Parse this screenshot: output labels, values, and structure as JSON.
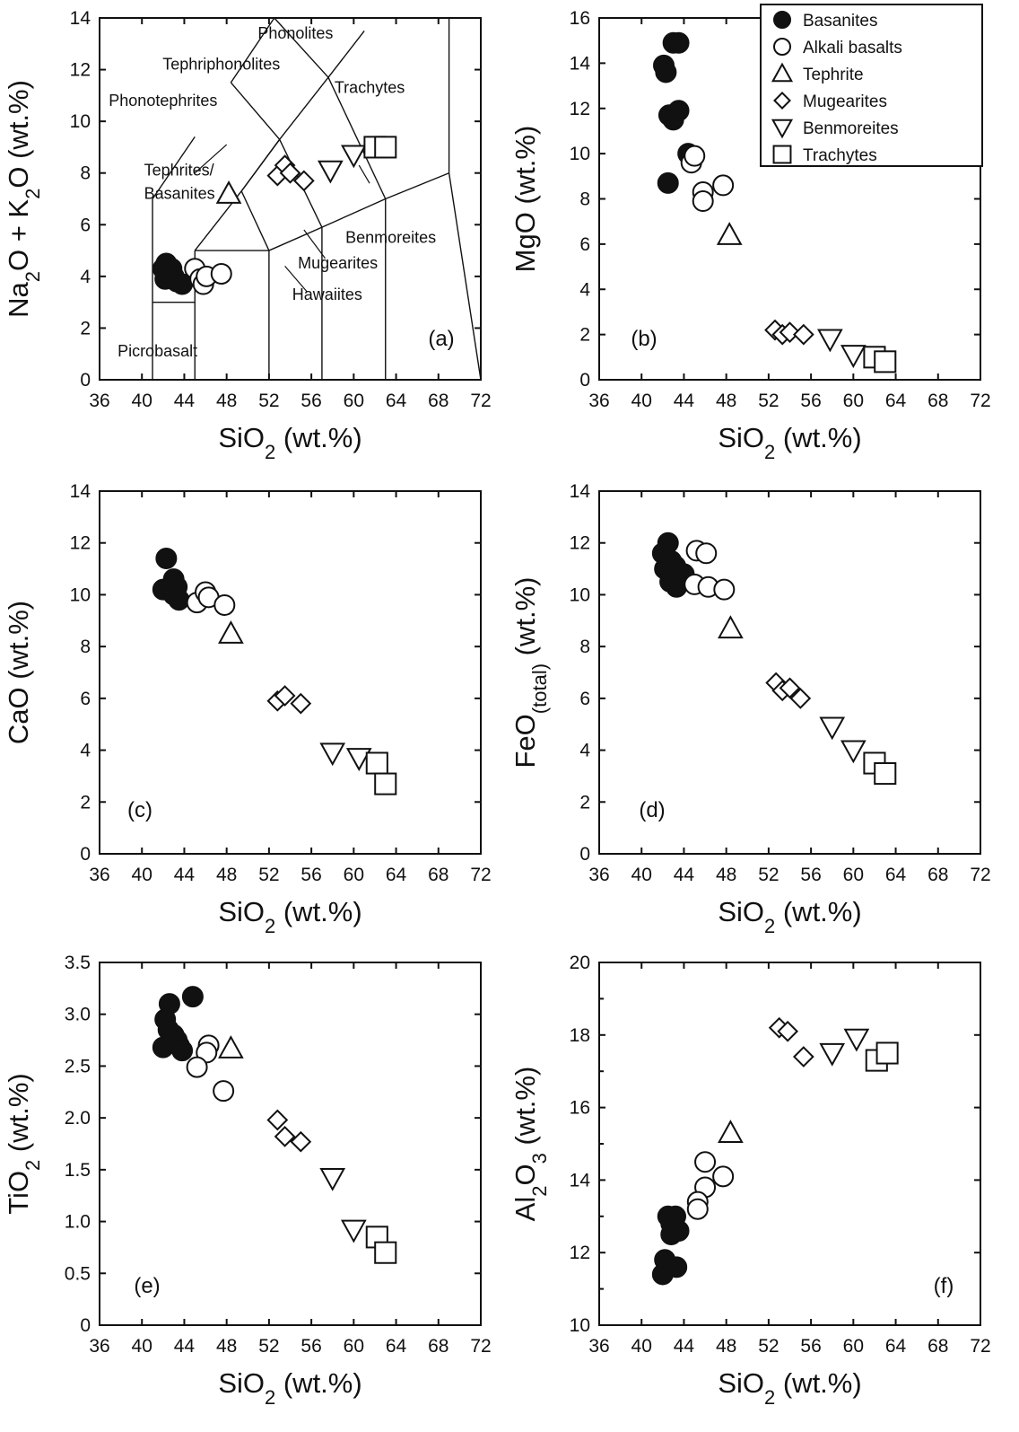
{
  "figure": {
    "background": "#ffffff",
    "ink": "#111111"
  },
  "legend": {
    "entries": [
      {
        "label": "Basanites",
        "marker": "filled-circle"
      },
      {
        "label": "Alkali basalts",
        "marker": "open-circle"
      },
      {
        "label": "Tephrite",
        "marker": "triangle-up"
      },
      {
        "label": "Mugearites",
        "marker": "diamond"
      },
      {
        "label": "Benmoreites",
        "marker": "triangle-down"
      },
      {
        "label": "Trachytes",
        "marker": "square"
      }
    ]
  },
  "chart_data": [
    {
      "id": "a",
      "type": "scatter",
      "panel_label": "(a)",
      "title": "",
      "xlabel": "SiO2 (wt.%)",
      "ylabel": "Na2O + K2O (wt.%)",
      "xlim": [
        36,
        72
      ],
      "ylim": [
        0,
        14
      ],
      "xticks": [
        "36",
        "40",
        "44",
        "48",
        "52",
        "56",
        "60",
        "64",
        "68",
        "72"
      ],
      "yticks": [
        "0",
        "2",
        "4",
        "6",
        "8",
        "10",
        "12",
        "14"
      ],
      "field_labels": [
        "Phonolites",
        "Tephriphonolites",
        "Phonotephrites",
        "Trachytes",
        "Tephrites/",
        "Basanites",
        "Benmoreites",
        "Mugearites",
        "Hawaiites",
        "Picrobasalt"
      ],
      "series": [
        {
          "name": "Basanites",
          "points": [
            [
              42.0,
              4.3
            ],
            [
              42.3,
              4.5
            ],
            [
              42.5,
              4.1
            ],
            [
              42.8,
              4.3
            ],
            [
              42.2,
              3.9
            ],
            [
              43.0,
              4.0
            ],
            [
              43.3,
              3.8
            ],
            [
              43.8,
              3.7
            ]
          ]
        },
        {
          "name": "Alkali basalts",
          "points": [
            [
              45.0,
              4.3
            ],
            [
              45.5,
              3.9
            ],
            [
              45.8,
              3.7
            ],
            [
              46.1,
              4.0
            ],
            [
              47.5,
              4.1
            ]
          ]
        },
        {
          "name": "Tephrite",
          "points": [
            [
              48.2,
              7.2
            ]
          ]
        },
        {
          "name": "Mugearites",
          "points": [
            [
              52.8,
              7.9
            ],
            [
              53.5,
              8.3
            ],
            [
              54.0,
              8.0
            ],
            [
              55.3,
              7.7
            ]
          ]
        },
        {
          "name": "Benmoreites",
          "points": [
            [
              57.8,
              8.1
            ],
            [
              60.0,
              8.7
            ]
          ]
        },
        {
          "name": "Trachytes",
          "points": [
            [
              62.0,
              9.0
            ],
            [
              63.0,
              9.0
            ]
          ]
        }
      ]
    },
    {
      "id": "b",
      "type": "scatter",
      "panel_label": "(b)",
      "title": "",
      "xlabel": "SiO2 (wt.%)",
      "ylabel": "MgO (wt.%)",
      "xlim": [
        36,
        72
      ],
      "ylim": [
        0,
        16
      ],
      "xticks": [
        "36",
        "40",
        "44",
        "48",
        "52",
        "56",
        "60",
        "64",
        "68",
        "72"
      ],
      "yticks": [
        "0",
        "2",
        "4",
        "6",
        "8",
        "10",
        "12",
        "14",
        "16"
      ],
      "series": [
        {
          "name": "Basanites",
          "points": [
            [
              43.0,
              14.9
            ],
            [
              43.5,
              14.9
            ],
            [
              42.1,
              13.9
            ],
            [
              42.3,
              13.6
            ],
            [
              43.5,
              11.9
            ],
            [
              42.6,
              11.7
            ],
            [
              43.0,
              11.5
            ],
            [
              44.4,
              10.0
            ],
            [
              42.5,
              8.7
            ]
          ]
        },
        {
          "name": "Alkali basalts",
          "points": [
            [
              44.7,
              9.6
            ],
            [
              45.0,
              9.9
            ],
            [
              45.8,
              8.3
            ],
            [
              47.7,
              8.6
            ],
            [
              45.8,
              7.9
            ]
          ]
        },
        {
          "name": "Tephrite",
          "points": [
            [
              48.3,
              6.4
            ]
          ]
        },
        {
          "name": "Mugearites",
          "points": [
            [
              52.6,
              2.2
            ],
            [
              53.3,
              2.0
            ],
            [
              54.0,
              2.1
            ],
            [
              55.3,
              2.0
            ]
          ]
        },
        {
          "name": "Benmoreites",
          "points": [
            [
              57.8,
              1.8
            ],
            [
              60.0,
              1.1
            ]
          ]
        },
        {
          "name": "Trachytes",
          "points": [
            [
              62.0,
              1.0
            ],
            [
              63.0,
              0.8
            ]
          ]
        }
      ]
    },
    {
      "id": "c",
      "type": "scatter",
      "panel_label": "(c)",
      "title": "",
      "xlabel": "SiO2 (wt.%)",
      "ylabel": "CaO (wt.%)",
      "xlim": [
        36,
        72
      ],
      "ylim": [
        0,
        14
      ],
      "xticks": [
        "36",
        "40",
        "44",
        "48",
        "52",
        "56",
        "60",
        "64",
        "68",
        "72"
      ],
      "yticks": [
        "0",
        "2",
        "4",
        "6",
        "8",
        "10",
        "12",
        "14"
      ],
      "series": [
        {
          "name": "Basanites",
          "points": [
            [
              42.3,
              11.4
            ],
            [
              43.0,
              10.6
            ],
            [
              42.0,
              10.2
            ],
            [
              43.3,
              10.3
            ],
            [
              43.0,
              10.0
            ],
            [
              43.5,
              9.8
            ]
          ]
        },
        {
          "name": "Alkali basalts",
          "points": [
            [
              45.2,
              9.7
            ],
            [
              46.0,
              10.1
            ],
            [
              46.3,
              9.9
            ],
            [
              47.8,
              9.6
            ]
          ]
        },
        {
          "name": "Tephrite",
          "points": [
            [
              48.4,
              8.5
            ]
          ]
        },
        {
          "name": "Mugearites",
          "points": [
            [
              52.8,
              5.9
            ],
            [
              53.5,
              6.1
            ],
            [
              55.0,
              5.8
            ]
          ]
        },
        {
          "name": "Benmoreites",
          "points": [
            [
              58.0,
              3.9
            ],
            [
              60.5,
              3.7
            ]
          ]
        },
        {
          "name": "Trachytes",
          "points": [
            [
              62.2,
              3.5
            ],
            [
              63.0,
              2.7
            ]
          ]
        }
      ]
    },
    {
      "id": "d",
      "type": "scatter",
      "panel_label": "(d)",
      "title": "",
      "xlabel": "SiO2 (wt.%)",
      "ylabel": "FeO(total) (wt.%)",
      "xlim": [
        36,
        72
      ],
      "ylim": [
        0,
        14
      ],
      "xticks": [
        "36",
        "40",
        "44",
        "48",
        "52",
        "56",
        "60",
        "64",
        "68",
        "72"
      ],
      "yticks": [
        "0",
        "2",
        "4",
        "6",
        "8",
        "10",
        "12",
        "14"
      ],
      "series": [
        {
          "name": "Basanites",
          "points": [
            [
              42.5,
              12.0
            ],
            [
              42.0,
              11.6
            ],
            [
              42.8,
              11.3
            ],
            [
              43.2,
              11.1
            ],
            [
              43.5,
              10.8
            ],
            [
              42.7,
              10.5
            ],
            [
              43.3,
              10.3
            ],
            [
              42.2,
              11.0
            ],
            [
              44.0,
              10.8
            ]
          ]
        },
        {
          "name": "Alkali basalts",
          "points": [
            [
              45.2,
              11.7
            ],
            [
              46.1,
              11.6
            ],
            [
              45.0,
              10.4
            ],
            [
              46.3,
              10.3
            ],
            [
              47.8,
              10.2
            ]
          ]
        },
        {
          "name": "Tephrite",
          "points": [
            [
              48.4,
              8.7
            ]
          ]
        },
        {
          "name": "Mugearites",
          "points": [
            [
              52.7,
              6.6
            ],
            [
              53.3,
              6.3
            ],
            [
              54.0,
              6.4
            ],
            [
              55.0,
              6.0
            ]
          ]
        },
        {
          "name": "Benmoreites",
          "points": [
            [
              58.0,
              4.9
            ],
            [
              60.0,
              4.0
            ]
          ]
        },
        {
          "name": "Trachytes",
          "points": [
            [
              62.0,
              3.5
            ],
            [
              63.0,
              3.1
            ]
          ]
        }
      ]
    },
    {
      "id": "e",
      "type": "scatter",
      "panel_label": "(e)",
      "title": "",
      "xlabel": "SiO2 (wt.%)",
      "ylabel": "TiO2 (wt.%)",
      "xlim": [
        36,
        72
      ],
      "ylim": [
        0,
        3.5
      ],
      "xticks": [
        "36",
        "40",
        "44",
        "48",
        "52",
        "56",
        "60",
        "64",
        "68",
        "72"
      ],
      "yticks": [
        "0",
        "0.5",
        "1.0",
        "1.5",
        "2.0",
        "2.5",
        "3.0",
        "3.5"
      ],
      "series": [
        {
          "name": "Basanites",
          "points": [
            [
              42.6,
              3.1
            ],
            [
              44.8,
              3.17
            ],
            [
              42.2,
              2.95
            ],
            [
              42.5,
              2.85
            ],
            [
              43.0,
              2.8
            ],
            [
              43.3,
              2.75
            ],
            [
              42.0,
              2.68
            ],
            [
              43.5,
              2.7
            ],
            [
              43.8,
              2.65
            ]
          ]
        },
        {
          "name": "Alkali basalts",
          "points": [
            [
              46.3,
              2.7
            ],
            [
              46.1,
              2.63
            ],
            [
              45.2,
              2.49
            ],
            [
              47.7,
              2.26
            ]
          ]
        },
        {
          "name": "Tephrite",
          "points": [
            [
              48.4,
              2.67
            ]
          ]
        },
        {
          "name": "Mugearites",
          "points": [
            [
              52.8,
              1.98
            ],
            [
              53.5,
              1.82
            ],
            [
              55.0,
              1.77
            ]
          ]
        },
        {
          "name": "Benmoreites",
          "points": [
            [
              58.0,
              1.42
            ],
            [
              60.0,
              0.92
            ]
          ]
        },
        {
          "name": "Trachytes",
          "points": [
            [
              62.2,
              0.85
            ],
            [
              63.0,
              0.7
            ]
          ]
        }
      ]
    },
    {
      "id": "f",
      "type": "scatter",
      "panel_label": "(f)",
      "title": "",
      "xlabel": "SiO2 (wt.%)",
      "ylabel": "Al2O3 (wt.%)",
      "xlim": [
        36,
        72
      ],
      "ylim": [
        10,
        20
      ],
      "xticks": [
        "36",
        "40",
        "44",
        "48",
        "52",
        "56",
        "60",
        "64",
        "68",
        "72"
      ],
      "yticks": [
        "10",
        "12",
        "14",
        "16",
        "18",
        "20"
      ],
      "series": [
        {
          "name": "Basanites",
          "points": [
            [
              42.5,
              13.0
            ],
            [
              43.2,
              13.0
            ],
            [
              42.8,
              12.8
            ],
            [
              43.5,
              12.6
            ],
            [
              42.8,
              12.5
            ],
            [
              42.2,
              11.8
            ],
            [
              43.3,
              11.6
            ],
            [
              42.0,
              11.4
            ]
          ]
        },
        {
          "name": "Alkali basalts",
          "points": [
            [
              46.0,
              14.5
            ],
            [
              47.7,
              14.1
            ],
            [
              46.0,
              13.8
            ],
            [
              45.3,
              13.4
            ],
            [
              45.3,
              13.2
            ]
          ]
        },
        {
          "name": "Tephrite",
          "points": [
            [
              48.4,
              15.3
            ]
          ]
        },
        {
          "name": "Mugearites",
          "points": [
            [
              53.0,
              18.2
            ],
            [
              53.8,
              18.1
            ],
            [
              55.3,
              17.4
            ]
          ]
        },
        {
          "name": "Benmoreites",
          "points": [
            [
              58.0,
              17.5
            ],
            [
              60.3,
              17.9
            ]
          ]
        },
        {
          "name": "Trachytes",
          "points": [
            [
              62.2,
              17.3
            ],
            [
              63.2,
              17.5
            ]
          ]
        }
      ]
    }
  ]
}
